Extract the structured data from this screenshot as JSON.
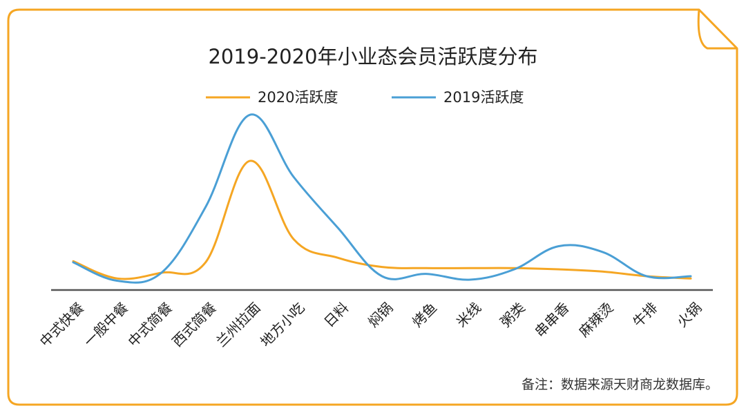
{
  "chart_data": {
    "type": "line",
    "title": "2019-2020年小业态会员活跃度分布",
    "categories": [
      "中式快餐",
      "一般中餐",
      "中式简餐",
      "西式简餐",
      "兰州拉面",
      "地方小吃",
      "日料",
      "焖锅",
      "烤鱼",
      "米线",
      "粥类",
      "串串香",
      "麻辣烫",
      "牛排",
      "火锅"
    ],
    "series": [
      {
        "name": "2020活跃度",
        "color": "#f5a623",
        "values": [
          12.5,
          5.0,
          7.5,
          12.0,
          56.0,
          22.0,
          14.0,
          10.0,
          9.5,
          9.5,
          9.5,
          9.0,
          8.0,
          6.0,
          5.0
        ]
      },
      {
        "name": "2019活跃度",
        "color": "#4a9fd5",
        "values": [
          12.0,
          4.0,
          7.5,
          36.0,
          76.0,
          49.0,
          27.0,
          6.0,
          7.0,
          4.5,
          9.0,
          19.0,
          16.5,
          6.0,
          6.0
        ]
      }
    ],
    "ylim": [
      0,
      80
    ],
    "grid": false,
    "legend": "top-center"
  },
  "footnote": "备注：数据来源天财商龙数据库。",
  "frame_color": "#f5a623"
}
